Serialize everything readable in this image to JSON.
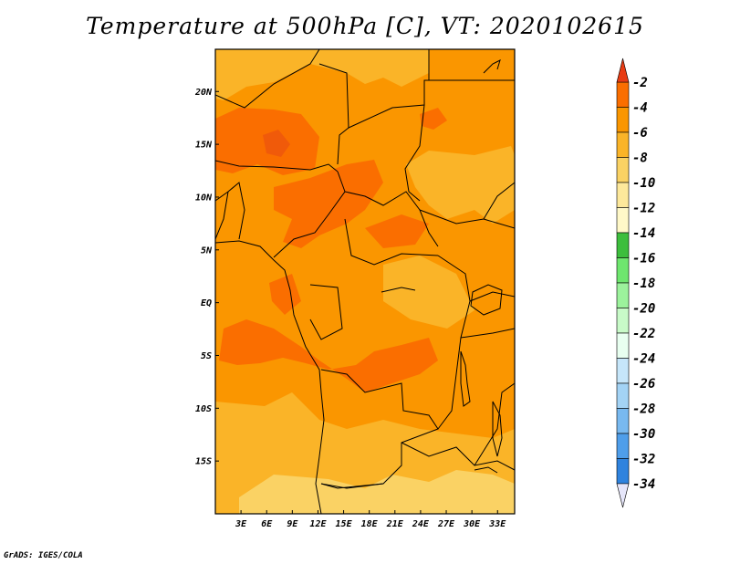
{
  "title": "Temperature at 500hPa [C], VT: 2020102615",
  "credit": "GrADS: IGES/COLA",
  "map": {
    "lon_range": [
      0,
      35
    ],
    "lat_range": [
      -20,
      24
    ],
    "lon_ticks": [
      {
        "lon": 3,
        "label": "3E"
      },
      {
        "lon": 6,
        "label": "6E"
      },
      {
        "lon": 9,
        "label": "9E"
      },
      {
        "lon": 12,
        "label": "12E"
      },
      {
        "lon": 15,
        "label": "15E"
      },
      {
        "lon": 18,
        "label": "18E"
      },
      {
        "lon": 21,
        "label": "21E"
      },
      {
        "lon": 24,
        "label": "24E"
      },
      {
        "lon": 27,
        "label": "27E"
      },
      {
        "lon": 30,
        "label": "30E"
      },
      {
        "lon": 33,
        "label": "33E"
      }
    ],
    "lat_ticks": [
      {
        "lat": 20,
        "label": "20N"
      },
      {
        "lat": 15,
        "label": "15N"
      },
      {
        "lat": 10,
        "label": "10N"
      },
      {
        "lat": 5,
        "label": "5N"
      },
      {
        "lat": 0,
        "label": "EQ"
      },
      {
        "lat": -5,
        "label": "5S"
      },
      {
        "lat": -10,
        "label": "10S"
      },
      {
        "lat": -15,
        "label": "15S"
      }
    ]
  },
  "colorbar": {
    "labels": [
      "-2",
      "-4",
      "-6",
      "-8",
      "-10",
      "-12",
      "-14",
      "-16",
      "-18",
      "-20",
      "-22",
      "-24",
      "-26",
      "-28",
      "-30",
      "-32",
      "-34"
    ],
    "colors": [
      "#a3d3f5",
      "#78b9f0",
      "#4f9eea",
      "#2f83de",
      "#1e67cf",
      "#1750bd",
      "#0e3aa3",
      "#0a1f78"
    ],
    "colors_warm": [
      "#f05a0a",
      "#fa6e00",
      "#fa9600",
      "#fab428",
      "#fad264",
      "#fde89b",
      "#fff8c8",
      "#3dbe3d",
      "#6ee66e",
      "#9cf29c",
      "#c8fac8",
      "#e8fff0",
      "#dff1fc",
      "#c6e6fa"
    ],
    "top_color": "#e83c14",
    "bottom_color": "#e6e6fa"
  }
}
